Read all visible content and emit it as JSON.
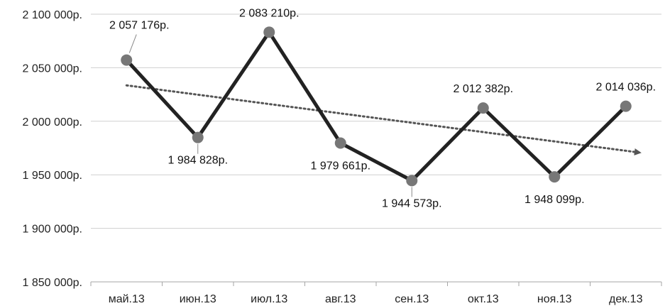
{
  "chart_data": {
    "type": "line",
    "categories": [
      "май.13",
      "июн.13",
      "июл.13",
      "авг.13",
      "сен.13",
      "окт.13",
      "ноя.13",
      "дек.13"
    ],
    "series": [
      {
        "values": [
          2057176,
          1984828,
          2083210,
          1979661,
          1944573,
          2012382,
          1948099,
          2014036
        ],
        "data_labels": [
          "2 057 176р.",
          "1 984 828р.",
          "2 083 210р.",
          "1 979 661р.",
          "1 944 573р.",
          "2 012 382р.",
          "1 948 099р.",
          "2 014 036р."
        ]
      }
    ],
    "trendline": {
      "type": "linear",
      "style": "dotted",
      "arrow": true
    },
    "ylim": [
      1850000,
      2100000
    ],
    "yticks": [
      1850000,
      1900000,
      1950000,
      2000000,
      2050000,
      2100000
    ],
    "ytick_labels": [
      "1 850 000р.",
      "1 900 000р.",
      "1 950 000р.",
      "2 000 000р.",
      "2 050 000р.",
      "2 100 000р."
    ],
    "grid": "horizontal",
    "legend": "none",
    "colors": {
      "line": "#222222",
      "marker": "#777777",
      "grid": "#cfcfcf",
      "trend": "#555555"
    }
  }
}
